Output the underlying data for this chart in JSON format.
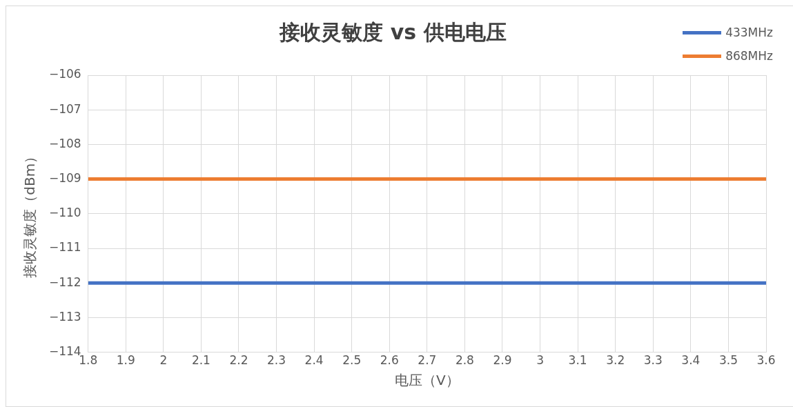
{
  "chart_data": {
    "type": "line",
    "title": "接收灵敏度 vs 供电电压",
    "xlabel": "电压（V）",
    "ylabel": "接收灵敏度（dBm）",
    "x": [
      1.8,
      3.6
    ],
    "series": [
      {
        "name": "433MHz",
        "color": "#4472c4",
        "values": [
          -112,
          -112
        ]
      },
      {
        "name": "868MHz",
        "color": "#ed7d31",
        "values": [
          -109,
          -109
        ]
      }
    ],
    "xlim": [
      1.8,
      3.6
    ],
    "xticks": [
      1.8,
      1.9,
      2,
      2.1,
      2.2,
      2.3,
      2.4,
      2.5,
      2.6,
      2.7,
      2.8,
      2.9,
      3,
      3.1,
      3.2,
      3.3,
      3.4,
      3.5,
      3.6
    ],
    "ylim": [
      -114,
      -106
    ],
    "yticks": [
      -114,
      -113,
      -112,
      -111,
      -110,
      -109,
      -108,
      -107,
      -106
    ],
    "grid": true,
    "legend": "top right",
    "marker": "none",
    "line_style": "solid"
  }
}
